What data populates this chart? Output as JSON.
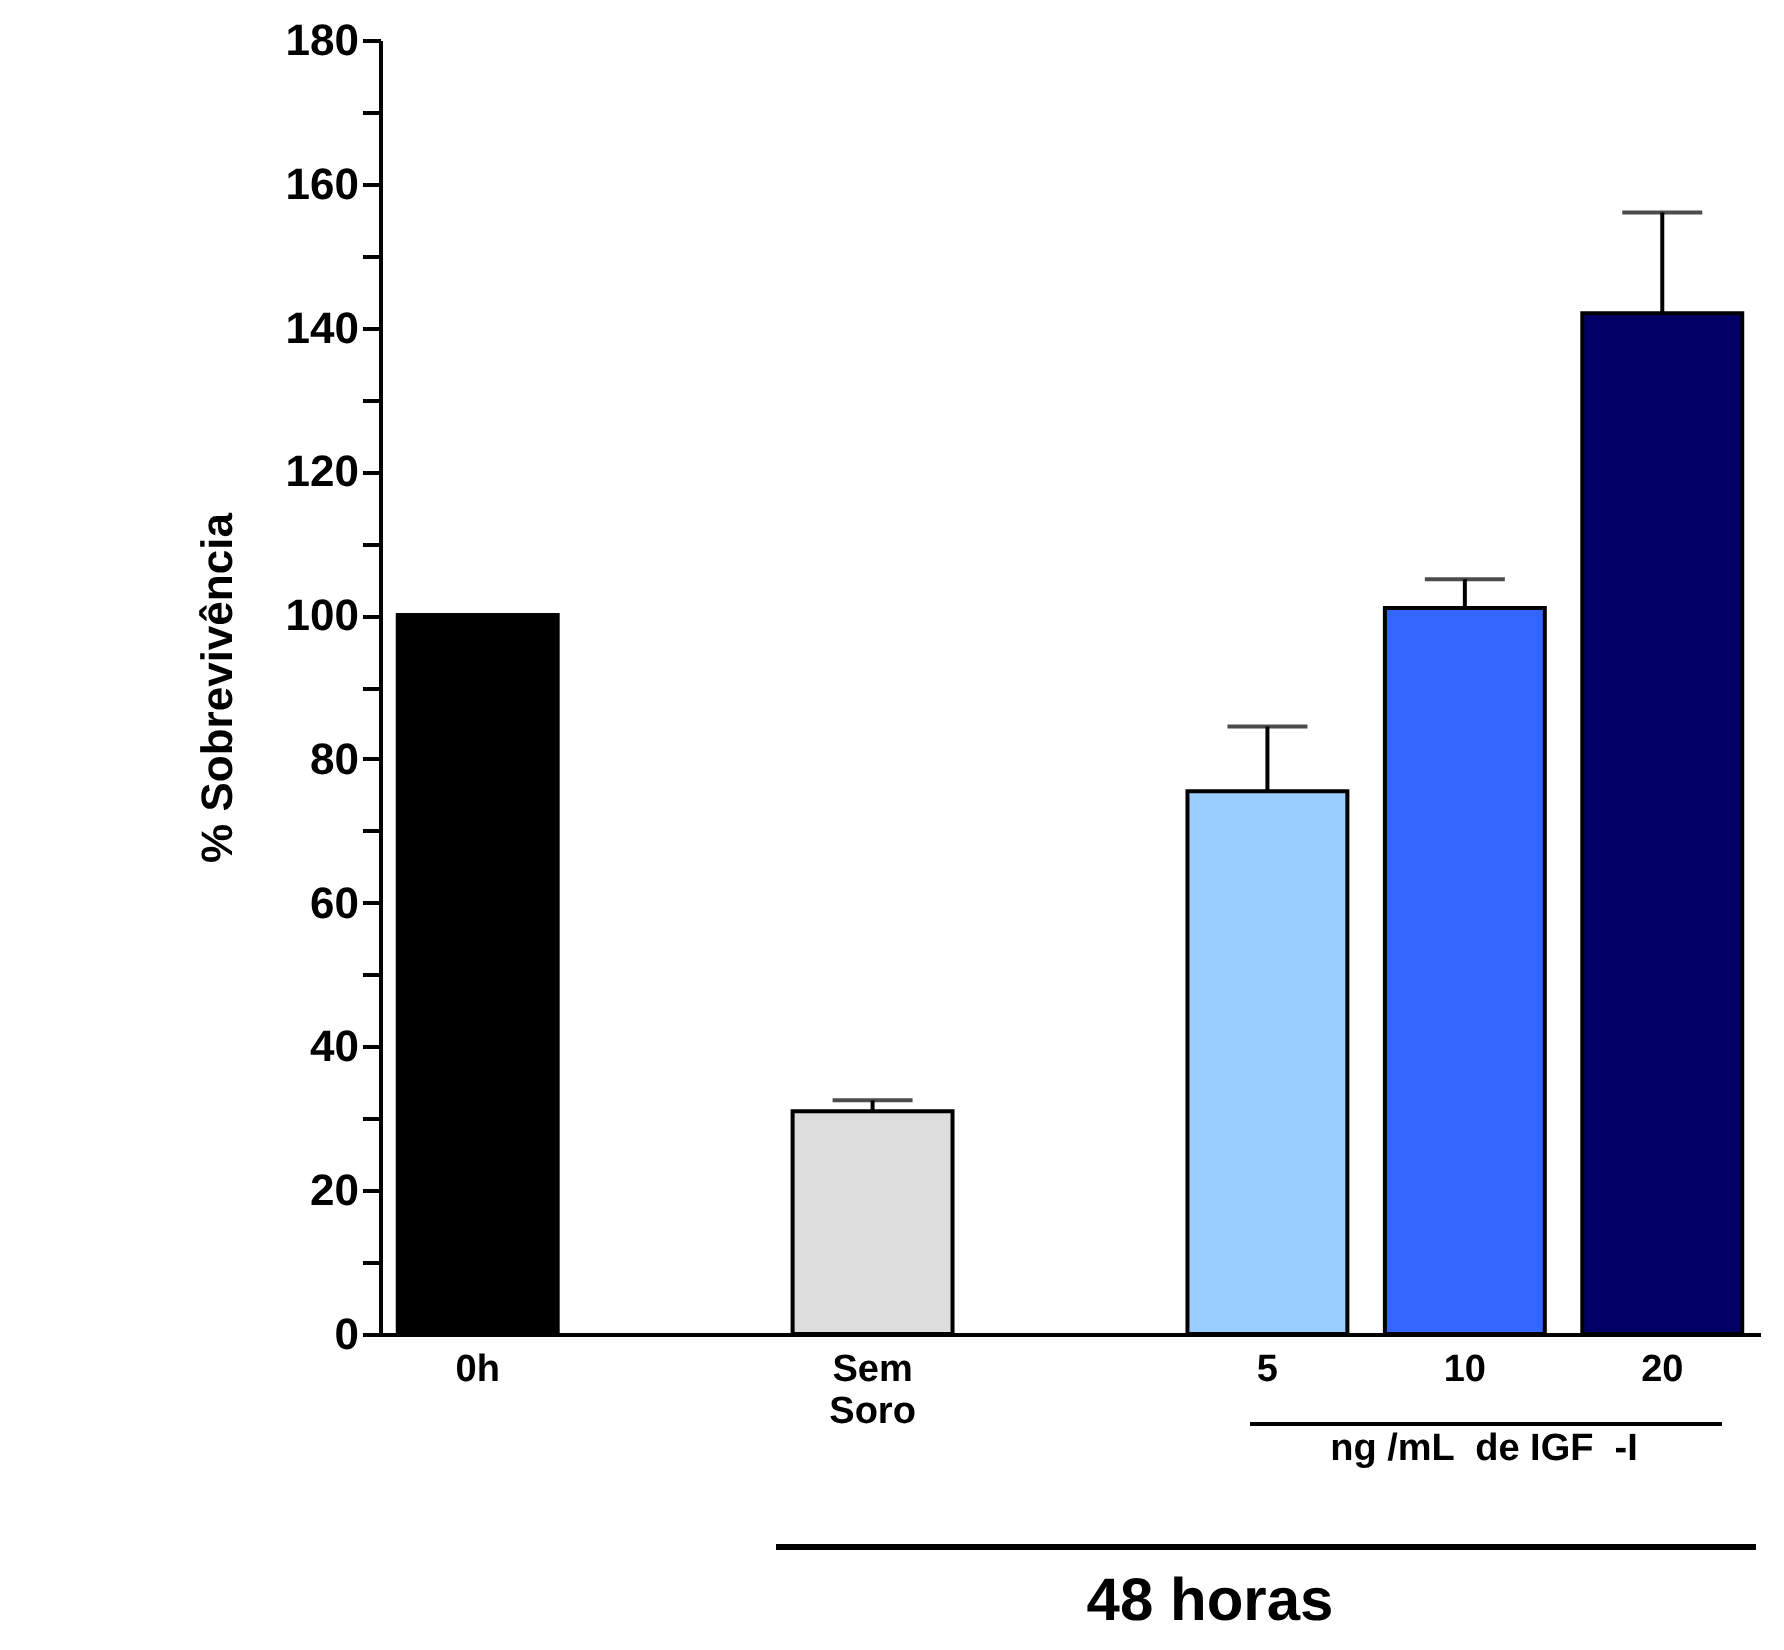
{
  "chart_data": {
    "type": "bar",
    "ylabel": "% Sobrevivência",
    "categories": [
      "0h",
      null,
      "Sem Soro",
      null,
      "5",
      "10",
      "20"
    ],
    "values": [
      100,
      null,
      31,
      null,
      75.5,
      101,
      142
    ],
    "errors": [
      null,
      null,
      [
        31,
        32.5
      ],
      null,
      [
        75.5,
        84.5
      ],
      [
        101,
        105
      ],
      [
        142,
        156
      ]
    ],
    "colors": [
      "#000000",
      null,
      "#dddddd",
      null,
      "#99ccff",
      "#3366ff",
      "#000066"
    ],
    "ylim": [
      0,
      180
    ],
    "yticks": [
      0,
      {
        "value": 10,
        "label": null
      },
      20,
      {
        "value": 30,
        "label": null
      },
      40,
      {
        "value": 50,
        "label": null
      },
      60,
      {
        "value": 70,
        "label": null
      },
      80,
      {
        "value": 90,
        "label": null
      },
      100,
      {
        "value": 110,
        "label": null
      },
      120,
      {
        "value": 130,
        "label": null
      },
      140,
      {
        "value": 150,
        "label": null
      },
      160,
      {
        "value": 170,
        "label": null
      },
      180
    ],
    "grid": false,
    "annotations": [
      "ng /mL  de IGF  -I",
      "48 horas"
    ]
  }
}
